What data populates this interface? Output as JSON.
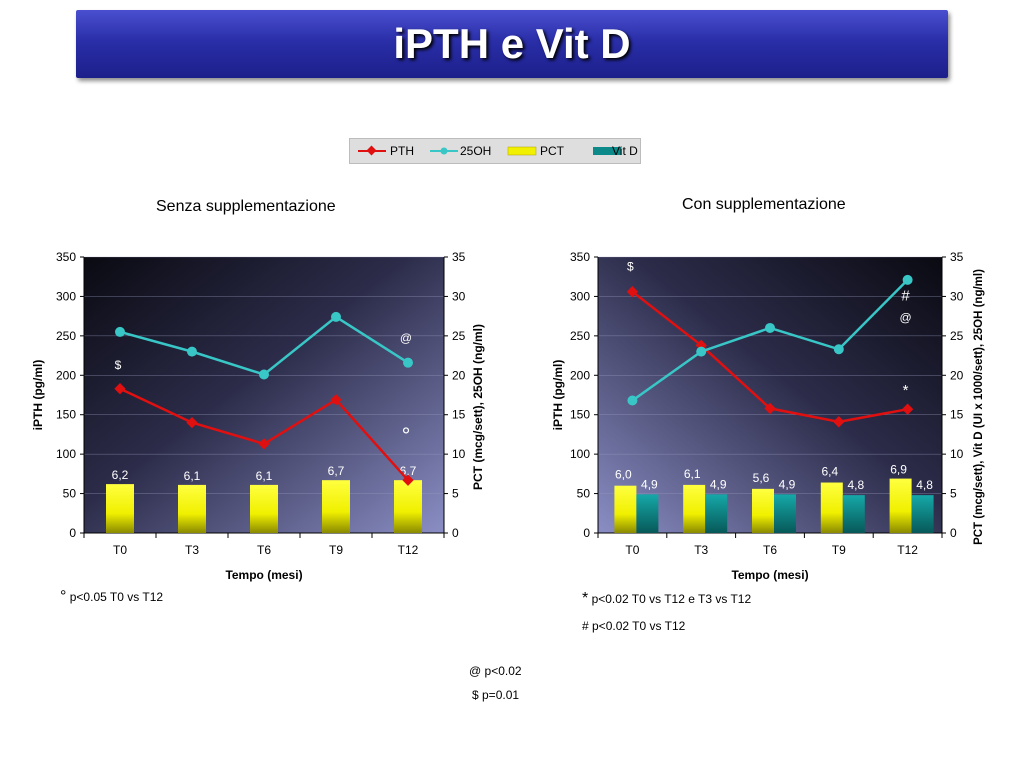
{
  "title": "iPTH e Vit D",
  "legend": [
    {
      "label": "PTH",
      "color": "#e01010",
      "kind": "line-diamond"
    },
    {
      "label": "25OH",
      "color": "#39c6c6",
      "kind": "line-dot"
    },
    {
      "label": "PCT",
      "color": "#f0f000",
      "kind": "bar"
    },
    {
      "label": "Vit D",
      "color": "#0c8a8a",
      "kind": "bar"
    }
  ],
  "chart_data": [
    {
      "type": "bar+line",
      "title": "Senza supplementazione",
      "xlabel": "Tempo (mesi)",
      "ylabel_left": "iPTH (pg/ml)",
      "ylabel_right": "PCT (mcg/sett), 25OH (ng/ml)",
      "categories": [
        "T0",
        "T3",
        "T6",
        "T9",
        "T12"
      ],
      "ylim_left": [
        0,
        350
      ],
      "ylim_right": [
        0,
        35
      ],
      "yticks_left": [
        "0",
        "50",
        "100",
        "150",
        "200",
        "250",
        "300",
        "350"
      ],
      "yticks_right": [
        "0",
        "5",
        "10",
        "15",
        "20",
        "25",
        "30",
        "35"
      ],
      "series": [
        {
          "name": "PTH",
          "axis": "left",
          "values": [
            183,
            140,
            113,
            169,
            67
          ]
        },
        {
          "name": "25OH",
          "axis": "right",
          "values": [
            25.5,
            23,
            20.1,
            27.4,
            21.6
          ]
        },
        {
          "name": "PCT",
          "axis": "right",
          "values": [
            6.2,
            6.1,
            6.1,
            6.7,
            6.7
          ],
          "labels": [
            "6,2",
            "6,1",
            "6,1",
            "6,7",
            "6,7"
          ]
        }
      ],
      "annotations": [
        {
          "text": "$",
          "category": "T0",
          "axis": "left",
          "value": 208
        },
        {
          "text": "@",
          "category": "T12",
          "axis": "left",
          "value": 242
        },
        {
          "text": "°",
          "category": "T12",
          "axis": "left",
          "value": 114
        }
      ]
    },
    {
      "type": "bar+line",
      "title": "Con supplementazione",
      "xlabel": "Tempo (mesi)",
      "ylabel_left": "iPTH (pg/ml)",
      "ylabel_right": "PCT (mcg/sett), Vit D (UI x 1000/sett), 25OH (ng/ml)",
      "categories": [
        "T0",
        "T3",
        "T6",
        "T9",
        "T12"
      ],
      "ylim_left": [
        0,
        350
      ],
      "ylim_right": [
        0,
        35
      ],
      "yticks_left": [
        "0",
        "50",
        "100",
        "150",
        "200",
        "250",
        "300",
        "350"
      ],
      "yticks_right": [
        "0",
        "5",
        "10",
        "15",
        "20",
        "25",
        "30",
        "35"
      ],
      "series": [
        {
          "name": "PTH",
          "axis": "left",
          "values": [
            306,
            238,
            158,
            141,
            157
          ]
        },
        {
          "name": "25OH",
          "axis": "right",
          "values": [
            16.8,
            23,
            26,
            23.3,
            32.1
          ]
        },
        {
          "name": "PCT",
          "axis": "right",
          "values": [
            6.0,
            6.1,
            5.6,
            6.4,
            6.9
          ],
          "labels": [
            "6,0",
            "6,1",
            "5,6",
            "6,4",
            "6,9"
          ]
        },
        {
          "name": "Vit D",
          "axis": "right",
          "values": [
            4.9,
            4.9,
            4.9,
            4.8,
            4.8
          ],
          "labels": [
            "4,9",
            "4,9",
            "4,9",
            "4,8",
            "4,8"
          ]
        }
      ],
      "annotations": [
        {
          "text": "$",
          "category": "T0",
          "axis": "left",
          "value": 333
        },
        {
          "text": "#",
          "category": "T12",
          "axis": "left",
          "value": 295
        },
        {
          "text": "@",
          "category": "T12",
          "axis": "left",
          "value": 268
        },
        {
          "text": "*",
          "category": "T12",
          "axis": "left",
          "value": 175
        }
      ]
    }
  ],
  "notes": {
    "left_symbol": "°",
    "left_text": "p<0.05 T0 vs T12",
    "right_symbol": "*",
    "right_text": "p<0.02 T0 vs T12 e T3 vs T12",
    "right_text2": "# p<0.02 T0 vs T12"
  },
  "footer": {
    "line1": "@ p<0.02",
    "line2": "$ p=0.01"
  }
}
